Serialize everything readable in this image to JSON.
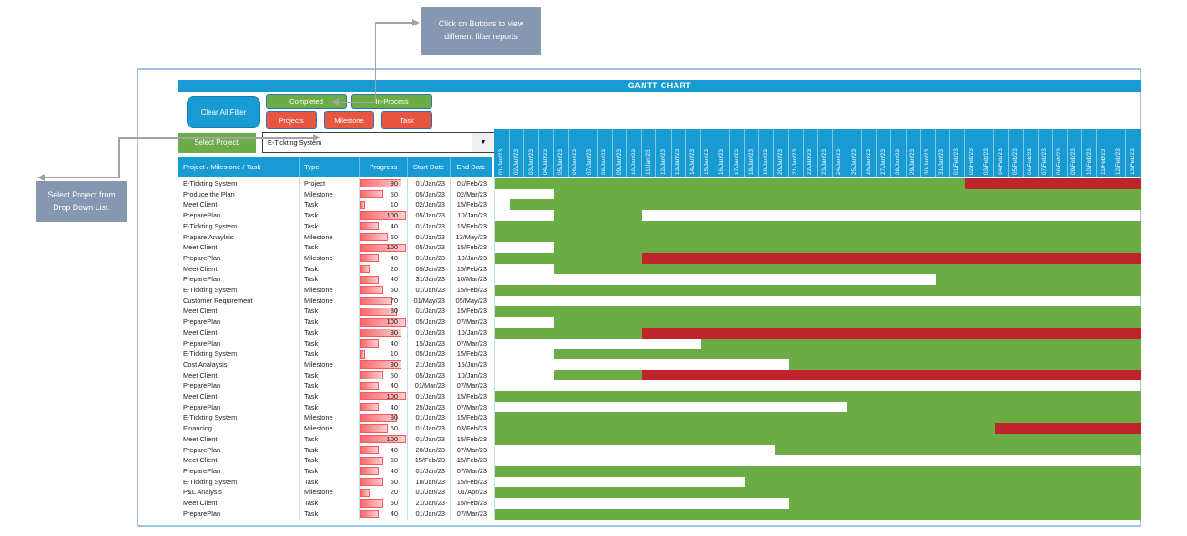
{
  "title": "GANTT CHART",
  "annotations": {
    "top_note": "Click on Buttons to view different filter reports",
    "left_note": "Select Project from Drop Down List."
  },
  "toolbar": {
    "clear_all_filter": "Clear All Filter",
    "completed": "Completed",
    "in_process": "In-Process",
    "projects": "Projects",
    "milestone": "Milestone",
    "task": "Task"
  },
  "select_project": {
    "label": "Select Project:",
    "value": "E-Tickting System",
    "dropdown_icon": "down-triangle"
  },
  "table": {
    "headers": {
      "name": "Project / Milestone / Task",
      "type": "Type",
      "progress": "Progress",
      "start": "Start Date",
      "end": "End Date"
    }
  },
  "colors": {
    "header_blue": "#189AD3",
    "green": "#6CAC47",
    "gantt_green": "#6CAC45",
    "gantt_red": "#C0242B",
    "button_red": "#E85642",
    "button_border": "#2E74B5",
    "annotation_bg": "#8597B1",
    "frame_border": "#9DC3E6",
    "connector": "#A3A3A3",
    "databar_fill": "#F9696C",
    "databar_border": "#F75A5E",
    "separator": "#BFE0F0"
  },
  "chart_data": {
    "type": "gantt",
    "title": "GANTT CHART",
    "timeline_start": "01/Jan/23",
    "timeline_end": "13/Feb/23",
    "legend": {
      "green": "on schedule / planned duration",
      "red": "overdue beyond end date"
    },
    "timeline_columns": [
      "01/Jan/23",
      "02/Jan/23",
      "03/Jan/23",
      "04/Jan/23",
      "05/Jan/23",
      "06/Jan/23",
      "07/Jan/23",
      "08/Jan/23",
      "09/Jan/23",
      "10/Jan/23",
      "11/Jan/23",
      "12/Jan/23",
      "13/Jan/23",
      "14/Jan/23",
      "15/Jan/23",
      "16/Jan/23",
      "17/Jan/23",
      "18/Jan/23",
      "19/Jan/23",
      "20/Jan/23",
      "21/Jan/23",
      "22/Jan/23",
      "23/Jan/23",
      "24/Jan/23",
      "25/Jan/23",
      "26/Jan/23",
      "27/Jan/23",
      "28/Jan/23",
      "29/Jan/23",
      "30/Jan/23",
      "31/Jan/23",
      "01/Feb/23",
      "02/Feb/23",
      "03/Feb/23",
      "04/Feb/23",
      "05/Feb/23",
      "06/Feb/23",
      "07/Feb/23",
      "08/Feb/23",
      "09/Feb/23",
      "10/Feb/23",
      "11/Feb/23",
      "12/Feb/23",
      "13/Feb/23"
    ],
    "rows": [
      {
        "name": "E-Tickting System",
        "type": "Project",
        "progress": 90,
        "start": "01/Jan/23",
        "end": "01/Feb/23",
        "green": [
          1,
          32
        ],
        "red": [
          33,
          44
        ]
      },
      {
        "name": "Produce the Plan",
        "type": "Milestone",
        "progress": 50,
        "start": "05/Jan/23",
        "end": "02/Mar/23",
        "green": [
          5,
          44
        ],
        "red": null
      },
      {
        "name": "Meet Client",
        "type": "Task",
        "progress": 10,
        "start": "02/Jan/23",
        "end": "15/Feb/23",
        "green": [
          2,
          44
        ],
        "red": null
      },
      {
        "name": "PreparePlan",
        "type": "Task",
        "progress": 100,
        "start": "05/Jan/23",
        "end": "10/Jan/23",
        "green": [
          5,
          10
        ],
        "red": null
      },
      {
        "name": "E-Tickting System",
        "type": "Task",
        "progress": 40,
        "start": "01/Jan/23",
        "end": "15/Feb/23",
        "green": [
          1,
          44
        ],
        "red": null
      },
      {
        "name": "Prapare Anaylsis",
        "type": "Milestone",
        "progress": 60,
        "start": "01/Jan/23",
        "end": "13/May/23",
        "green": [
          1,
          44
        ],
        "red": null
      },
      {
        "name": "Meet Client",
        "type": "Task",
        "progress": 100,
        "start": "05/Jan/23",
        "end": "15/Feb/23",
        "green": [
          5,
          44
        ],
        "red": null
      },
      {
        "name": "PreparePlan",
        "type": "Milestone",
        "progress": 40,
        "start": "01/Jan/23",
        "end": "10/Jan/23",
        "green": [
          1,
          10
        ],
        "red": [
          11,
          44
        ]
      },
      {
        "name": "Meet Client",
        "type": "Task",
        "progress": 20,
        "start": "05/Jan/23",
        "end": "15/Feb/23",
        "green": [
          5,
          44
        ],
        "red": null
      },
      {
        "name": "PreparePlan",
        "type": "Task",
        "progress": 40,
        "start": "31/Jan/23",
        "end": "10/Mar/23",
        "green": [
          31,
          44
        ],
        "red": null
      },
      {
        "name": "E-Tickting System",
        "type": "Milestone",
        "progress": 50,
        "start": "01/Jan/23",
        "end": "15/Feb/23",
        "green": [
          1,
          44
        ],
        "red": null
      },
      {
        "name": "Customer Requirement",
        "type": "Milestone",
        "progress": 70,
        "start": "01/May/23",
        "end": "05/May/23",
        "green": null,
        "red": null
      },
      {
        "name": "Meet Client",
        "type": "Task",
        "progress": 80,
        "start": "01/Jan/23",
        "end": "15/Feb/23",
        "green": [
          1,
          44
        ],
        "red": null
      },
      {
        "name": "PreparePlan",
        "type": "Task",
        "progress": 100,
        "start": "05/Jan/23",
        "end": "07/Mar/23",
        "green": [
          5,
          44
        ],
        "red": null
      },
      {
        "name": "Meet Client",
        "type": "Task",
        "progress": 90,
        "start": "01/Jan/23",
        "end": "10/Jan/23",
        "green": [
          1,
          10
        ],
        "red": [
          11,
          44
        ]
      },
      {
        "name": "PreparePlan",
        "type": "Task",
        "progress": 40,
        "start": "15/Jan/23",
        "end": "07/Mar/23",
        "green": [
          15,
          44
        ],
        "red": null
      },
      {
        "name": "E-Tickting System",
        "type": "Task",
        "progress": 10,
        "start": "05/Jan/23",
        "end": "15/Feb/23",
        "green": [
          5,
          44
        ],
        "red": null
      },
      {
        "name": "Cost Analaysis",
        "type": "Milestone",
        "progress": 90,
        "start": "21/Jan/23",
        "end": "15/Jun/23",
        "green": [
          21,
          44
        ],
        "red": null
      },
      {
        "name": "Meet Client",
        "type": "Task",
        "progress": 50,
        "start": "05/Jan/23",
        "end": "10/Jan/23",
        "green": [
          5,
          10
        ],
        "red": [
          11,
          44
        ]
      },
      {
        "name": "PreparePlan",
        "type": "Task",
        "progress": 40,
        "start": "01/Mar/23",
        "end": "07/Mar/23",
        "green": null,
        "red": null
      },
      {
        "name": "Meet Client",
        "type": "Task",
        "progress": 100,
        "start": "01/Jan/23",
        "end": "15/Feb/23",
        "green": [
          1,
          44
        ],
        "red": null
      },
      {
        "name": "PreparePlan",
        "type": "Task",
        "progress": 40,
        "start": "25/Jan/23",
        "end": "07/Mar/23",
        "green": [
          25,
          44
        ],
        "red": null
      },
      {
        "name": "E-Tickting System",
        "type": "Milestone",
        "progress": 80,
        "start": "01/Jan/23",
        "end": "15/Feb/23",
        "green": [
          1,
          44
        ],
        "red": null
      },
      {
        "name": "Financing",
        "type": "Milestone",
        "progress": 60,
        "start": "01/Jan/23",
        "end": "03/Feb/23",
        "green": [
          1,
          34
        ],
        "red": [
          35,
          44
        ]
      },
      {
        "name": "Meet Client",
        "type": "Task",
        "progress": 100,
        "start": "01/Jan/23",
        "end": "15/Feb/23",
        "green": [
          1,
          44
        ],
        "red": null
      },
      {
        "name": "PreparePlan",
        "type": "Task",
        "progress": 40,
        "start": "20/Jan/23",
        "end": "07/Mar/23",
        "green": [
          20,
          44
        ],
        "red": null
      },
      {
        "name": "Meet Client",
        "type": "Task",
        "progress": 50,
        "start": "15/Feb/23",
        "end": "15/Feb/23",
        "green": null,
        "red": null
      },
      {
        "name": "PreparePlan",
        "type": "Task",
        "progress": 40,
        "start": "01/Jan/23",
        "end": "07/Mar/23",
        "green": [
          1,
          44
        ],
        "red": null
      },
      {
        "name": "E-Tickting System",
        "type": "Task",
        "progress": 50,
        "start": "18/Jan/23",
        "end": "15/Feb/23",
        "green": [
          18,
          44
        ],
        "red": null
      },
      {
        "name": "P&L Analysis",
        "type": "Milestone",
        "progress": 20,
        "start": "01/Jan/23",
        "end": "01/Apr/23",
        "green": [
          1,
          44
        ],
        "red": null
      },
      {
        "name": "Meet Client",
        "type": "Task",
        "progress": 50,
        "start": "21/Jan/23",
        "end": "15/Feb/23",
        "green": [
          21,
          44
        ],
        "red": null
      },
      {
        "name": "PreparePlan",
        "type": "Task",
        "progress": 40,
        "start": "01/Jan/23",
        "end": "07/Mar/23",
        "green": [
          1,
          44
        ],
        "red": null
      }
    ]
  }
}
